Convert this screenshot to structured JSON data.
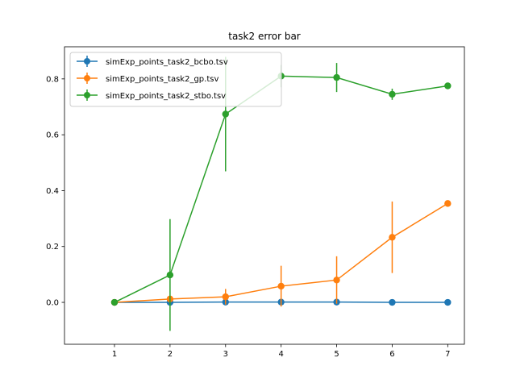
{
  "chart_data": {
    "type": "line",
    "title": "task2 error bar",
    "xlabel": "",
    "ylabel": "",
    "x": [
      1,
      2,
      3,
      4,
      5,
      6,
      7
    ],
    "xlim": [
      0.1,
      7.3
    ],
    "ylim": [
      -0.15,
      0.915
    ],
    "xticks": [
      1,
      2,
      3,
      4,
      5,
      6,
      7
    ],
    "yticks": [
      0.0,
      0.2,
      0.4,
      0.6,
      0.8
    ],
    "ytick_labels": [
      "0.0",
      "0.2",
      "0.4",
      "0.6",
      "0.8"
    ],
    "grid": false,
    "legend_position": "top-left",
    "series": [
      {
        "name": "simExp_points_task2_bcbo.tsv",
        "color": "#1f77b4",
        "values": [
          0.0,
          0.0,
          0.001,
          0.001,
          0.001,
          0.0,
          0.0
        ],
        "errors": [
          0.0,
          0.0,
          0.0,
          0.0,
          0.0,
          0.0,
          0.0
        ]
      },
      {
        "name": "simExp_points_task2_gp.tsv",
        "color": "#ff7f0e",
        "values": [
          0.0,
          0.012,
          0.02,
          0.058,
          0.08,
          0.233,
          0.354
        ],
        "errors": [
          0.0,
          0.0,
          0.028,
          0.073,
          0.085,
          0.128,
          0.0
        ]
      },
      {
        "name": "simExp_points_task2_stbo.tsv",
        "color": "#2ca02c",
        "values": [
          0.0,
          0.098,
          0.674,
          0.81,
          0.805,
          0.745,
          0.775
        ],
        "errors": [
          0.0,
          0.2,
          0.205,
          0.04,
          0.052,
          0.02,
          0.0
        ]
      }
    ]
  }
}
